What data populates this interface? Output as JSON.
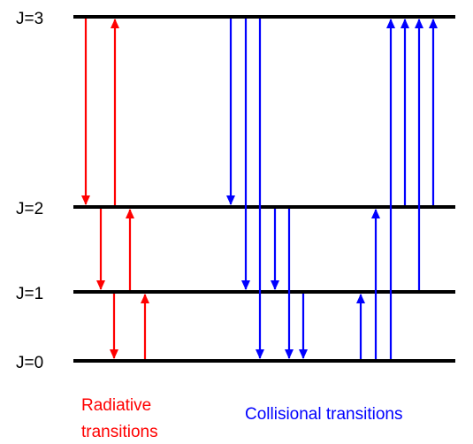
{
  "levels": [
    {
      "label": "J=3",
      "j": 3
    },
    {
      "label": "J=2",
      "j": 2
    },
    {
      "label": "J=1",
      "j": 1
    },
    {
      "label": "J=0",
      "j": 0
    }
  ],
  "captions": {
    "radiative_line1": "Radiative",
    "radiative_line2": "transitions",
    "collisional": "Collisional transitions"
  },
  "colors": {
    "level": "#000000",
    "radiative": "#ff0000",
    "collisional": "#0000ff"
  },
  "transitions": {
    "radiative": [
      {
        "from": 3,
        "to": 2
      },
      {
        "from": 2,
        "to": 3
      },
      {
        "from": 2,
        "to": 1
      },
      {
        "from": 1,
        "to": 2
      },
      {
        "from": 1,
        "to": 0
      },
      {
        "from": 0,
        "to": 1
      }
    ],
    "collisional": [
      {
        "from": 3,
        "to": 2
      },
      {
        "from": 3,
        "to": 1
      },
      {
        "from": 3,
        "to": 0
      },
      {
        "from": 2,
        "to": 1
      },
      {
        "from": 2,
        "to": 0
      },
      {
        "from": 1,
        "to": 0
      },
      {
        "from": 0,
        "to": 1
      },
      {
        "from": 0,
        "to": 2
      },
      {
        "from": 0,
        "to": 3
      },
      {
        "from": 2,
        "to": 3
      },
      {
        "from": 1,
        "to": 3
      },
      {
        "from": 2,
        "to": 3
      }
    ]
  }
}
